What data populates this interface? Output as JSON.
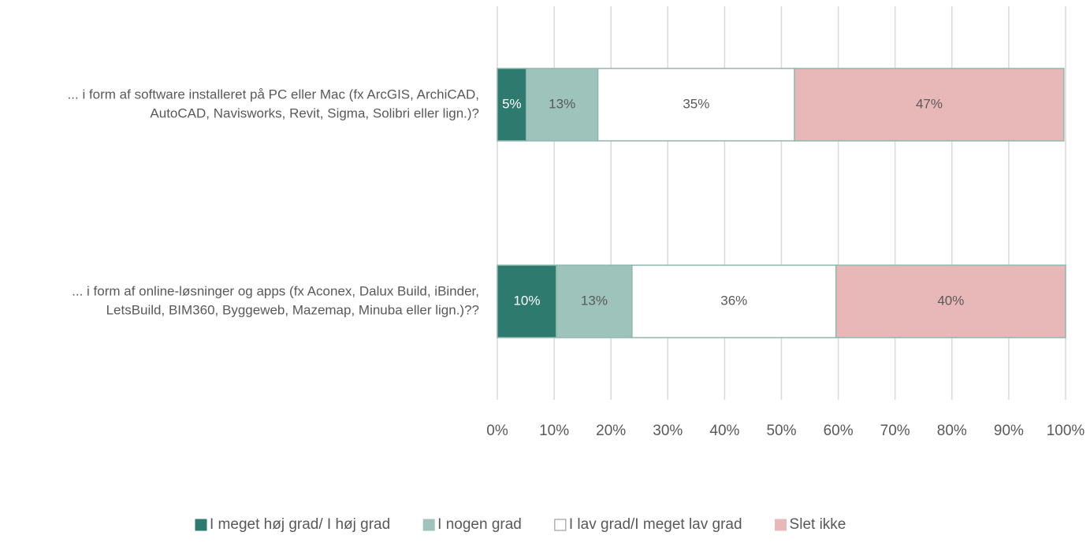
{
  "chart_data": {
    "type": "stacked_barh",
    "categories": [
      [
        "... i form af software installeret på PC eller Mac (fx ArcGIS, ArchiCAD,",
        "AutoCAD, Navisworks, Revit, Sigma, Solibri eller lign.)?"
      ],
      [
        "... i form af online-løsninger og apps  (fx Aconex, Dalux Build, iBinder,",
        "LetsBuild, BIM360, Byggeweb, Mazemap, Minuba eller lign.)??"
      ]
    ],
    "series": [
      {
        "name": "I meget høj grad/ I høj grad",
        "color": "#2e7a6e",
        "label_color": "#ffffff",
        "values": [
          5.1,
          10.4
        ],
        "value_labels": [
          "5%",
          "10%"
        ]
      },
      {
        "name": "I nogen grad",
        "color": "#9dc3bb",
        "label_color": "#595959",
        "values": [
          12.6,
          13.3
        ],
        "value_labels": [
          "13%",
          "13%"
        ]
      },
      {
        "name": "I lav grad/I meget lav grad",
        "color": "#ffffff",
        "label_color": "#595959",
        "values": [
          34.6,
          35.9
        ],
        "value_labels": [
          "35%",
          "36%"
        ]
      },
      {
        "name": "Slet ikke",
        "color": "#e8b8b8",
        "label_color": "#595959",
        "values": [
          47.4,
          40.4
        ],
        "value_labels": [
          "47%",
          "40%"
        ]
      }
    ],
    "xlim": [
      0,
      100
    ],
    "xticks": [
      {
        "value": 0,
        "label": "0%"
      },
      {
        "value": 10,
        "label": "10%"
      },
      {
        "value": 20,
        "label": "20%"
      },
      {
        "value": 30,
        "label": "30%"
      },
      {
        "value": 40,
        "label": "40%"
      },
      {
        "value": 50,
        "label": "50%"
      },
      {
        "value": 60,
        "label": "60%"
      },
      {
        "value": 70,
        "label": "70%"
      },
      {
        "value": 80,
        "label": "80%"
      },
      {
        "value": 90,
        "label": "90%"
      },
      {
        "value": 100,
        "label": "100%"
      }
    ],
    "grid": true,
    "legend": "bottom",
    "border_color": "#8fb8ae"
  }
}
